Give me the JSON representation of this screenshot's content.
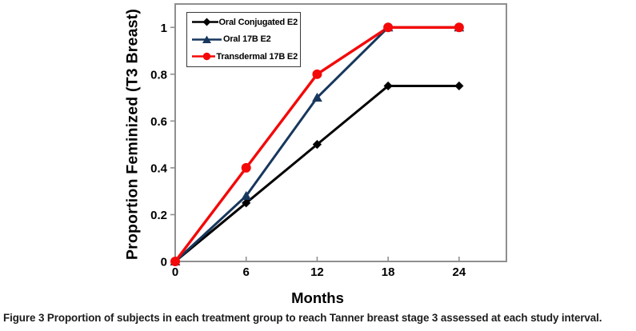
{
  "figure_caption": {
    "label": "Figure 3",
    "text": " Proportion of subjects in each treatment group to reach Tanner breast stage 3 assessed at each study interval."
  },
  "chart_data": {
    "type": "line",
    "title": "",
    "xlabel": "Months",
    "ylabel": "Proportion Feminized (T3 Breast)",
    "x": [
      0,
      6,
      12,
      18,
      24
    ],
    "xlim": [
      0,
      28
    ],
    "ylim": [
      0,
      1.1
    ],
    "x_ticks": [
      0,
      6,
      12,
      18,
      24
    ],
    "y_ticks": [
      0,
      0.2,
      0.4,
      0.6,
      0.8,
      1
    ],
    "grid": false,
    "legend_position": "upper-left-inside",
    "axis_color": "#8F8F8F",
    "series": [
      {
        "name": "Oral Conjugated E2",
        "marker": "diamond",
        "color": "#000000",
        "values": [
          0,
          0.25,
          0.5,
          0.75,
          0.75
        ]
      },
      {
        "name": "Oral 17B E2",
        "marker": "triangle",
        "color": "#17375D",
        "values": [
          0,
          0.28,
          0.7,
          1,
          1
        ]
      },
      {
        "name": "Transdermal 17B E2",
        "marker": "circle",
        "color": "#F40808",
        "values": [
          0,
          0.4,
          0.8,
          1,
          1
        ]
      }
    ]
  }
}
